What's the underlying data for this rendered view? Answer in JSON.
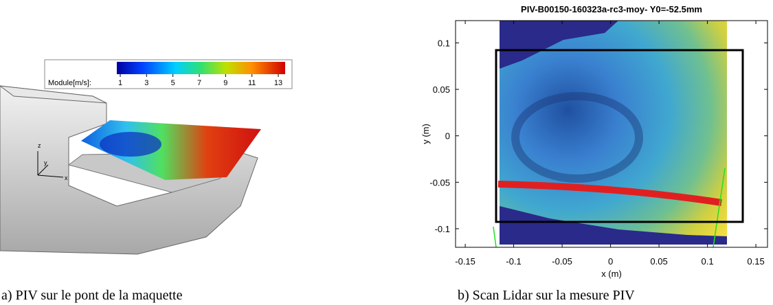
{
  "left_panel": {
    "caption": "a) PIV sur le pont de la maquette",
    "colorbar": {
      "label": "Module[m/s]:",
      "ticks": [
        1,
        3,
        5,
        7,
        9,
        11,
        13
      ]
    },
    "axis_triad": [
      "z",
      "y",
      "x"
    ]
  },
  "chart_data": {
    "type": "heatmap",
    "title": "PIV-B00150-160323a-rc3-moy- Y0=-52.5mm",
    "caption": "b) Scan Lidar sur la mesure PIV",
    "xlabel": "x (m)",
    "ylabel": "y (m)",
    "xlim": [
      -0.16,
      0.162
    ],
    "ylim": [
      -0.12,
      0.124
    ],
    "xticks": [
      -0.15,
      -0.1,
      -0.05,
      0,
      0.05,
      0.1,
      0.15
    ],
    "yticks": [
      -0.1,
      -0.05,
      0,
      0.05,
      0.1
    ]
  }
}
